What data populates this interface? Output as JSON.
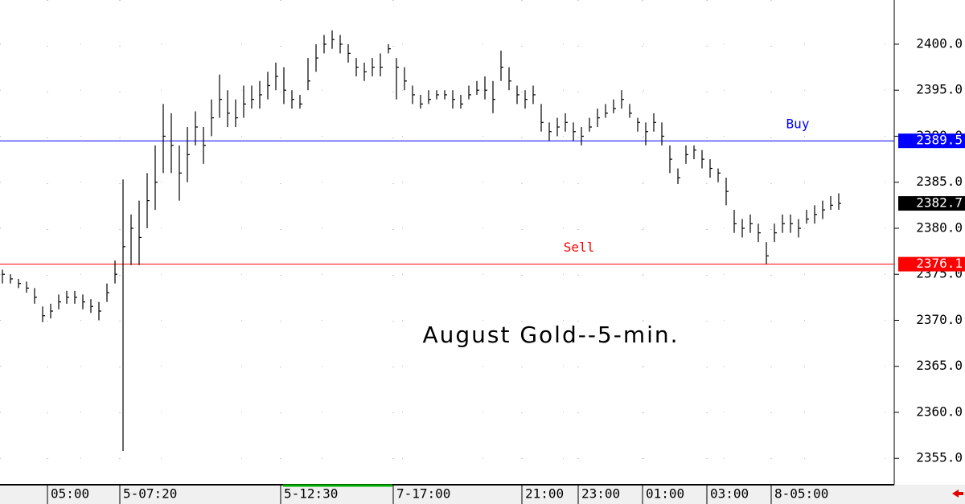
{
  "chart_data": {
    "type": "ohlc",
    "title": "August Gold--5-min.",
    "color": "#000000",
    "categories": [
      null,
      null,
      null,
      null,
      null,
      null,
      "05:00",
      null,
      null,
      null,
      null,
      null,
      null,
      null,
      null,
      "5-07:20",
      null,
      null,
      null,
      null,
      null,
      null,
      null,
      null,
      null,
      null,
      null,
      null,
      null,
      null,
      null,
      null,
      null,
      null,
      null,
      "5-12:30",
      null,
      null,
      null,
      null,
      null,
      null,
      null,
      null,
      null,
      null,
      null,
      null,
      null,
      "7-17:00",
      null,
      null,
      null,
      null,
      null,
      null,
      null,
      null,
      null,
      null,
      null,
      null,
      null,
      null,
      null,
      "21:00",
      null,
      null,
      null,
      null,
      null,
      null,
      "23:00",
      null,
      null,
      null,
      null,
      null,
      null,
      null,
      "01:00",
      null,
      null,
      null,
      null,
      null,
      null,
      null,
      "03:00",
      null,
      null,
      null,
      null,
      null,
      null,
      null,
      "8-05:00",
      null,
      null,
      null,
      null,
      null,
      null,
      null,
      null
    ],
    "high": [
      2375.5,
      2375,
      2374.5,
      2374.2,
      2373.5,
      2371.5,
      2371.8,
      2372.8,
      2373.2,
      2373.2,
      2372.8,
      2372.3,
      2372,
      2374,
      2376.5,
      2385.3,
      2381.5,
      2383,
      2386,
      2389,
      2393.5,
      2392.5,
      2389,
      2391,
      2392.7,
      2391,
      2394,
      2396.7,
      2395,
      2394,
      2395.5,
      2395.5,
      2396,
      2397,
      2398,
      2397.5,
      2395,
      2394.5,
      2398.5,
      2400,
      2401,
      2401.5,
      2401,
      2400,
      2398.5,
      2398,
      2398.5,
      2399,
      2400,
      2398.5,
      2397.5,
      2395.5,
      2394.5,
      2395,
      2395,
      2395,
      2395,
      2394.5,
      2395.5,
      2396,
      2396.5,
      2396,
      2399.3,
      2397.5,
      2395.5,
      2395,
      2395.5,
      2393.5,
      2391.5,
      2392,
      2392.5,
      2391.5,
      2391,
      2392,
      2393,
      2393.5,
      2394,
      2395,
      2393.5,
      2392,
      2391.5,
      2392.5,
      2391.5,
      2389,
      2386.5,
      2389,
      2389,
      2388.5,
      2387.5,
      2386.5,
      2385.5,
      2382,
      2381,
      2381.5,
      2380.5,
      2378.5,
      2380.5,
      2381.5,
      2381.5,
      2381,
      2382,
      2382.5,
      2383,
      2383.5,
      2383.8
    ],
    "low": [
      2374,
      2374,
      2373.5,
      2373,
      2371.8,
      2369.8,
      2370.2,
      2371.2,
      2371.8,
      2371.8,
      2371.2,
      2370.8,
      2370,
      2372,
      2374,
      2355.8,
      2376,
      2376,
      2380,
      2382,
      2386,
      2386,
      2383,
      2385,
      2389,
      2387,
      2390,
      2392,
      2391,
      2391,
      2392,
      2393,
      2393,
      2394,
      2395,
      2393.5,
      2393,
      2393,
      2395,
      2397,
      2399,
      2399.5,
      2399,
      2398,
      2396.5,
      2396,
      2396.5,
      2396.5,
      2399,
      2394,
      2395,
      2393.5,
      2393,
      2393.5,
      2394,
      2394,
      2393,
      2393,
      2394,
      2394.5,
      2394,
      2392.5,
      2396,
      2395,
      2393.5,
      2393,
      2393.5,
      2390.5,
      2389.5,
      2390,
      2390.5,
      2389.5,
      2389,
      2390.5,
      2391,
      2392,
      2392.5,
      2393,
      2392,
      2390.5,
      2389,
      2390.5,
      2389,
      2386,
      2384.8,
      2387,
      2387.5,
      2386.5,
      2385.5,
      2385,
      2382.5,
      2379.5,
      2379,
      2379.5,
      2378.5,
      2376.1,
      2378.5,
      2379.5,
      2379.5,
      2379,
      2380.5,
      2380.5,
      2381,
      2382,
      2382
    ],
    "close": [
      2375,
      2374.5,
      2374,
      2373.5,
      2372.5,
      2370.5,
      2371,
      2372,
      2372.5,
      2372.5,
      2372,
      2371.5,
      2371,
      2373,
      2375,
      2378,
      2380,
      2379,
      2383,
      2385,
      2390,
      2389,
      2386,
      2388,
      2391,
      2389,
      2392,
      2394,
      2392.5,
      2392,
      2393.5,
      2394,
      2394.5,
      2395.5,
      2396.5,
      2395,
      2394,
      2393.5,
      2396,
      2398.5,
      2400,
      2400.5,
      2400,
      2399,
      2397.5,
      2397,
      2397.5,
      2397.5,
      2399.5,
      2397.5,
      2396,
      2394.5,
      2393.5,
      2394,
      2394.5,
      2394.5,
      2394,
      2393.5,
      2394.5,
      2395,
      2395,
      2394,
      2397.5,
      2396,
      2394.5,
      2394,
      2394.5,
      2391.5,
      2390.5,
      2391,
      2391.5,
      2390.5,
      2390,
      2391,
      2392,
      2392.5,
      2393,
      2394,
      2392.5,
      2391.5,
      2390.5,
      2391.5,
      2390,
      2387.5,
      2385.5,
      2388,
      2388.5,
      2387.5,
      2386.5,
      2386,
      2384,
      2380.5,
      2380,
      2380.5,
      2379.5,
      2377,
      2379.5,
      2380.5,
      2380.5,
      2380,
      2381,
      2381.5,
      2382,
      2382.5,
      2382.7
    ],
    "levels": [
      {
        "name": "Buy",
        "value": 2389.5,
        "color": "#0000ff"
      },
      {
        "name": "Sell",
        "value": 2376.1,
        "color": "#ff0000"
      }
    ],
    "ylim": [
      2352.4,
      2404.8
    ],
    "yticks": [
      {
        "value": 2355,
        "label": "2355.0"
      },
      {
        "value": 2360,
        "label": "2360.0"
      },
      {
        "value": 2365,
        "label": "2365.0"
      },
      {
        "value": 2370,
        "label": "2370.0"
      },
      {
        "value": 2375,
        "label": "2375.0"
      },
      {
        "value": 2380,
        "label": "2380.0"
      },
      {
        "value": 2385,
        "label": "2385.0"
      },
      {
        "value": 2390,
        "label": "2390.0"
      },
      {
        "value": 2395,
        "label": "2395.0"
      },
      {
        "value": 2400,
        "label": "2400.0"
      }
    ],
    "grid": true
  }
}
